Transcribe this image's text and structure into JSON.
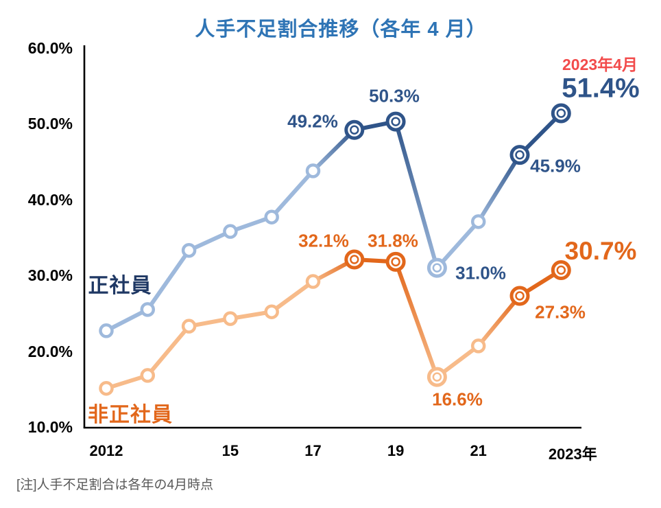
{
  "title": "人手不足割合推移（各年 4 月）",
  "note": "[注]人手不足割合は各年の4月時点",
  "colors": {
    "title_blue": "#2E74B5",
    "navy": "#2F5489",
    "navy_dark_text": "#1F3864",
    "light_blue": "#9EB9DC",
    "orange_dark": "#E2671B",
    "orange_light": "#F7BB8A",
    "red": "#F24B4B",
    "axis_black": "#000000",
    "note_gray": "#595959"
  },
  "chart_data": {
    "type": "line",
    "x": [
      2012,
      2013,
      2014,
      2015,
      2016,
      2017,
      2018,
      2019,
      2020,
      2021,
      2022,
      2023
    ],
    "ylim": [
      10,
      60
    ],
    "grid": false,
    "legend_position": "inline-labels",
    "y_axis": {
      "ticks": [
        {
          "label": "60.0%",
          "value": 60
        },
        {
          "label": "50.0%",
          "value": 50
        },
        {
          "label": "40.0%",
          "value": 40
        },
        {
          "label": "30.0%",
          "value": 30
        },
        {
          "label": "20.0%",
          "value": 20
        },
        {
          "label": "10.0%",
          "value": 10
        }
      ]
    },
    "x_axis": {
      "ticks": [
        {
          "label": "2012",
          "index": 0,
          "dx": 0
        },
        {
          "label": "15",
          "index": 3,
          "dx": 0
        },
        {
          "label": "17",
          "index": 5,
          "dx": 0
        },
        {
          "label": "19",
          "index": 7,
          "dx": 0
        },
        {
          "label": "21",
          "index": 9,
          "dx": 0
        },
        {
          "label": "2023年",
          "index": 11,
          "dx": 17
        }
      ]
    },
    "series": [
      {
        "id": "hiseishain",
        "name": "非正社員",
        "color_light": "#F7BB8A",
        "color_dark": "#E2671B",
        "values": [
          15.1,
          16.8,
          23.3,
          24.3,
          25.2,
          29.2,
          32.1,
          31.8,
          16.6,
          20.7,
          27.3,
          30.7
        ],
        "segment_styles": [
          "light",
          "light",
          "light",
          "light",
          "light",
          "light_to_dark",
          "dark",
          "dark_to_light",
          "light",
          "light_to_dark",
          "dark"
        ],
        "point_styles": [
          "small_light",
          "small_light",
          "small_light",
          "small_light",
          "small_light",
          "small_light",
          "big_dark",
          "big_dark",
          "big_light",
          "small_light",
          "big_dark",
          "big_dark"
        ]
      },
      {
        "id": "seishain",
        "name": "正社員",
        "color_light": "#9EB9DC",
        "color_dark": "#2F5489",
        "values": [
          22.7,
          25.5,
          33.3,
          35.8,
          37.7,
          43.8,
          49.2,
          50.3,
          31.0,
          37.1,
          45.9,
          51.4
        ],
        "segment_styles": [
          "light",
          "light",
          "light",
          "light",
          "light",
          "light_to_dark",
          "dark",
          "dark_to_light",
          "light",
          "light_to_dark",
          "dark"
        ],
        "point_styles": [
          "small_light",
          "small_light",
          "small_light",
          "small_light",
          "small_light",
          "small_light",
          "big_dark",
          "big_dark",
          "big_light",
          "small_light",
          "big_dark",
          "big_dark"
        ]
      }
    ],
    "annotations": {
      "red_header": "2023年4月",
      "sei_2018": "49.2%",
      "sei_2019": "50.3%",
      "sei_2020": "31.0%",
      "sei_2022": "45.9%",
      "sei_2023": "51.4%",
      "hisei_2018": "32.1%",
      "hisei_2019": "31.8%",
      "hisei_2020": "16.6%",
      "hisei_2022": "27.3%",
      "hisei_2023": "30.7%"
    }
  }
}
